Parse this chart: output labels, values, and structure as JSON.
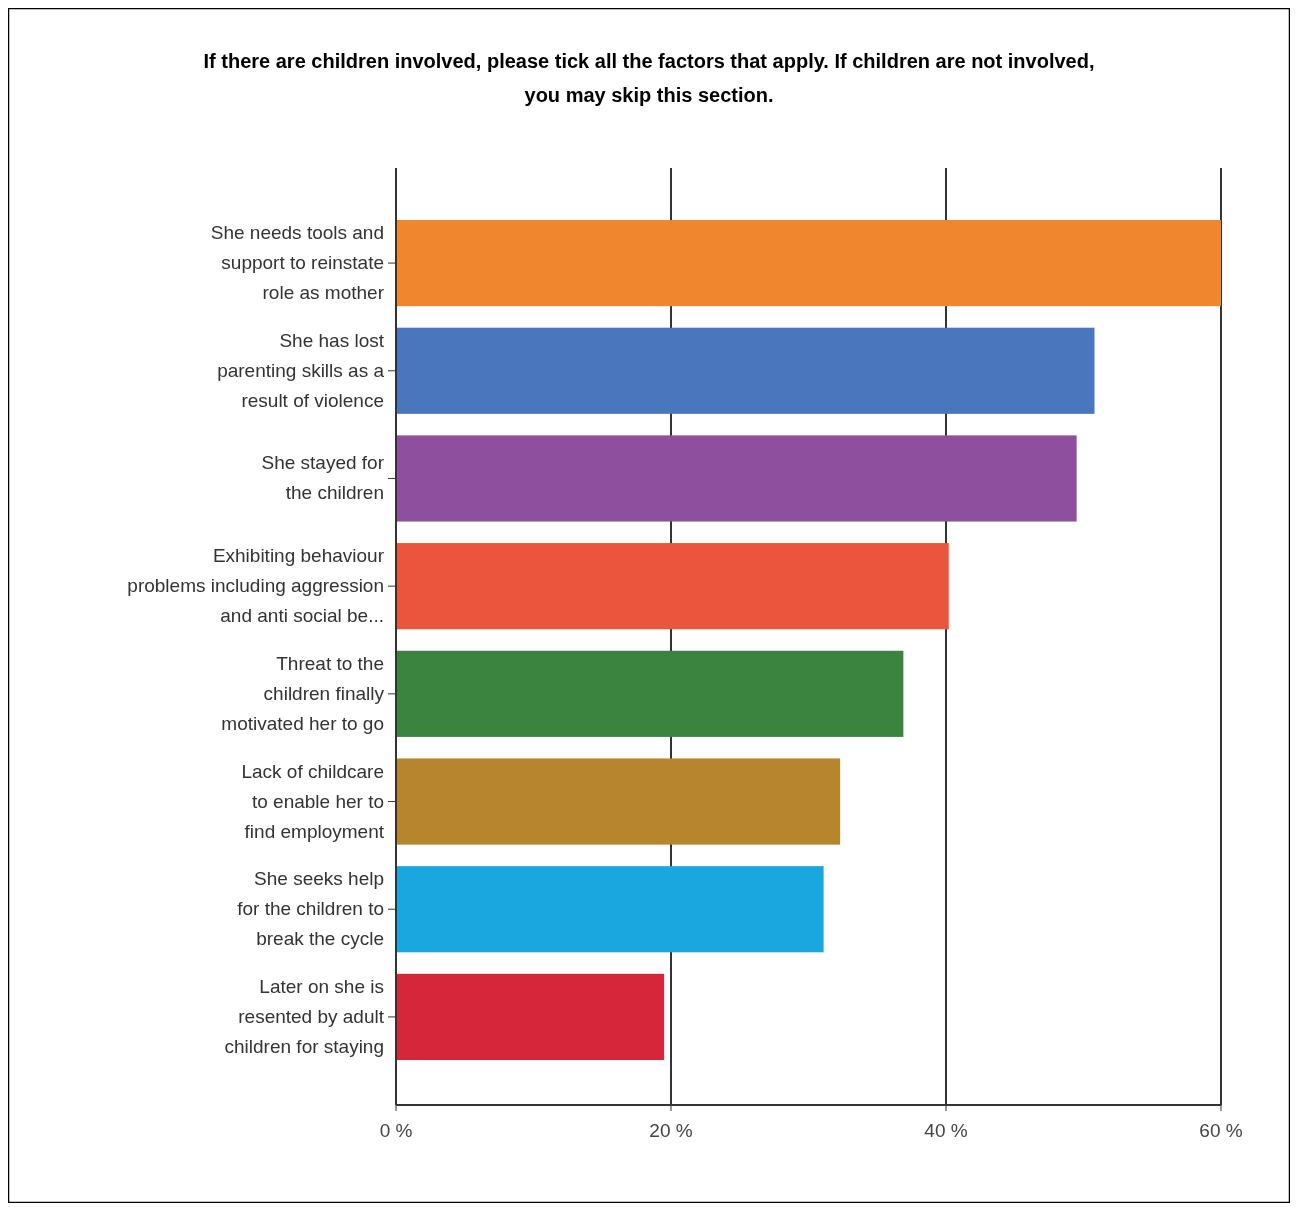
{
  "chart_data": {
    "type": "bar",
    "orientation": "horizontal",
    "title": "If there are children involved, please tick all the factors that apply. If  children are not involved,\nyou may skip this section.",
    "categories": [
      "She needs tools and\nsupport to reinstate\nrole as mother",
      "She has lost\nparenting skills as a\nresult of violence",
      "She stayed for\nthe children",
      "Exhibiting behaviour\nproblems including aggression\nand anti social be...",
      "Threat to the\nchildren finally\nmotivated her to go",
      "Lack of childcare\nto enable her to\nfind employment",
      "She seeks help\nfor the children to\nbreak the cycle",
      "Later on she is\nresented by adult\nchildren for staying"
    ],
    "values": [
      60,
      50.8,
      49.5,
      40.2,
      36.9,
      32.3,
      31.1,
      19.5
    ],
    "colors": [
      "#f0862e",
      "#4a76bd",
      "#8d4f9e",
      "#e9553d",
      "#3a8440",
      "#b5862d",
      "#1aa6df",
      "#d6263a"
    ],
    "xlim": [
      0,
      60
    ],
    "xticks": [
      {
        "value": 0,
        "label": "0 %"
      },
      {
        "value": 20,
        "label": "20 %"
      },
      {
        "value": 40,
        "label": "40 %"
      },
      {
        "value": 60,
        "label": "60 %"
      }
    ],
    "grid": "x"
  }
}
